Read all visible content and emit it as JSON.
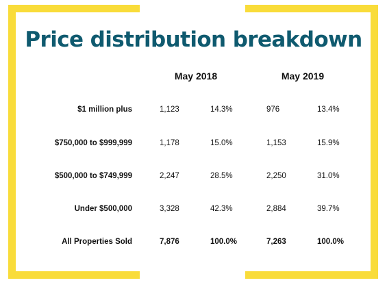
{
  "colors": {
    "accent": "#f9dc3a",
    "title": "#0f5a6f"
  },
  "chart_data": {
    "type": "table",
    "title": "Price distribution breakdown",
    "columns": [
      "May 2018",
      "May 2019"
    ],
    "rows": [
      {
        "label": "$1 million plus",
        "y2018_count": "1,123",
        "y2018_pct": "14.3%",
        "y2019_count": "976",
        "y2019_pct": "13.4%"
      },
      {
        "label": "$750,000 to $999,999",
        "y2018_count": "1,178",
        "y2018_pct": "15.0%",
        "y2019_count": "1,153",
        "y2019_pct": "15.9%"
      },
      {
        "label": "$500,000 to $749,999",
        "y2018_count": "2,247",
        "y2018_pct": "28.5%",
        "y2019_count": "2,250",
        "y2019_pct": "31.0%"
      },
      {
        "label": "Under $500,000",
        "y2018_count": "3,328",
        "y2018_pct": "42.3%",
        "y2019_count": "2,884",
        "y2019_pct": "39.7%"
      },
      {
        "label": "All Properties Sold",
        "y2018_count": "7,876",
        "y2018_pct": "100.0%",
        "y2019_count": "7,263",
        "y2019_pct": "100.0%"
      }
    ]
  }
}
